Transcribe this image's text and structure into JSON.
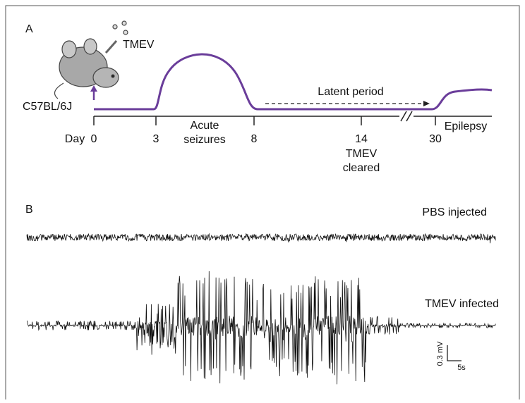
{
  "panel_a": {
    "label": "A",
    "virus": "TMEV",
    "strain": "C57BL/6J",
    "latent": "Latent period",
    "day_prefix": "Day",
    "ticks": [
      "0",
      "3",
      "8",
      "14",
      "30"
    ],
    "acute": [
      "Acute",
      "seizures"
    ],
    "cleared": [
      "TMEV",
      "cleared"
    ],
    "epilepsy": "Epilepsy"
  },
  "panel_b": {
    "label": "B",
    "traces": [
      {
        "label": "PBS injected"
      },
      {
        "label": "TMEV infected"
      }
    ],
    "scale": {
      "voltage": "0.3 mV",
      "time": "5s"
    }
  }
}
